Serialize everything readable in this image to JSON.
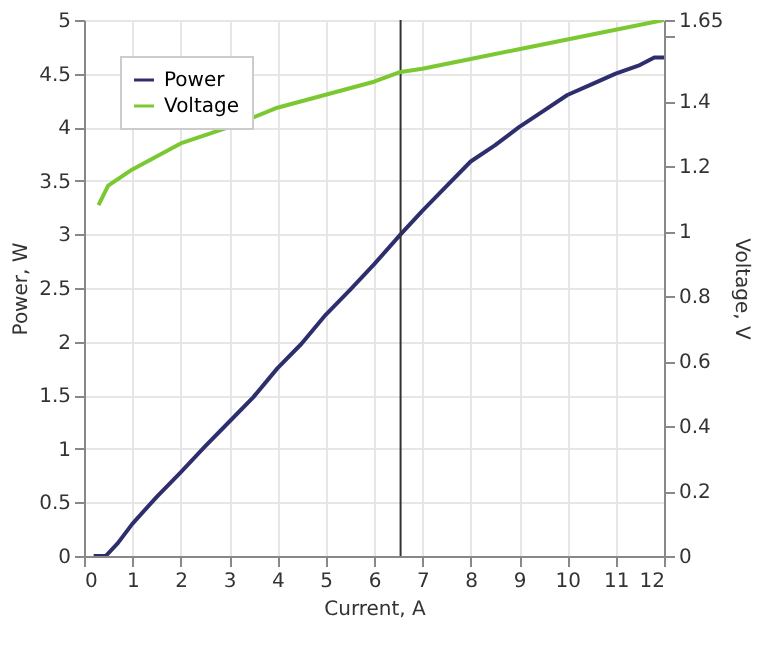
{
  "chart_data": {
    "type": "line",
    "xlabel": "Current, A",
    "ylabel": "Power, W",
    "y2label": "Voltage, V",
    "xlim": [
      0,
      12
    ],
    "xticks": [
      0,
      1,
      2,
      3,
      4,
      5,
      6,
      7,
      8,
      9,
      10,
      11,
      12
    ],
    "ylim": [
      0,
      5
    ],
    "yticks": [
      0,
      0.5,
      1,
      1.5,
      2,
      2.5,
      3,
      3.5,
      4,
      4.5,
      5
    ],
    "y2lim": [
      0,
      1.65
    ],
    "y2ticks": [
      0,
      0.2,
      0.4,
      0.6,
      0.8,
      1,
      1.2,
      1.4,
      {
        "value": 1.6,
        "label": null
      },
      1.65
    ],
    "grid": true,
    "legend": "top left",
    "marker": "none",
    "line_style": "solid",
    "ref_lines": [
      {
        "axis": "x",
        "value": 6.55,
        "color": "#333333"
      }
    ],
    "series": [
      {
        "name": "Power",
        "color": "#2e2e6e",
        "x": [
          0.2,
          0.45,
          0.7,
          1,
          1.5,
          2,
          2.5,
          3,
          3.5,
          4,
          4.5,
          5,
          5.5,
          6,
          6.55,
          7,
          7.5,
          8,
          8.5,
          9,
          9.5,
          10,
          10.5,
          11,
          11.5,
          11.8,
          12
        ],
        "values": [
          0,
          0,
          0.12,
          0.3,
          0.55,
          0.78,
          1.02,
          1.25,
          1.48,
          1.75,
          1.98,
          2.25,
          2.48,
          2.72,
          3.0,
          3.22,
          3.45,
          3.68,
          3.83,
          4.0,
          4.15,
          4.3,
          4.4,
          4.5,
          4.58,
          4.65,
          4.65
        ]
      },
      {
        "name": "Voltage",
        "color": "#7cc832",
        "axis": "y2",
        "x": [
          0.3,
          0.5,
          1,
          1.5,
          2,
          3,
          4,
          5,
          6,
          6.55,
          7,
          8,
          9,
          10,
          11,
          12
        ],
        "values": [
          1.08,
          1.14,
          1.19,
          1.23,
          1.27,
          1.32,
          1.38,
          1.42,
          1.46,
          1.49,
          1.5,
          1.53,
          1.56,
          1.59,
          1.62,
          1.65
        ]
      }
    ]
  }
}
